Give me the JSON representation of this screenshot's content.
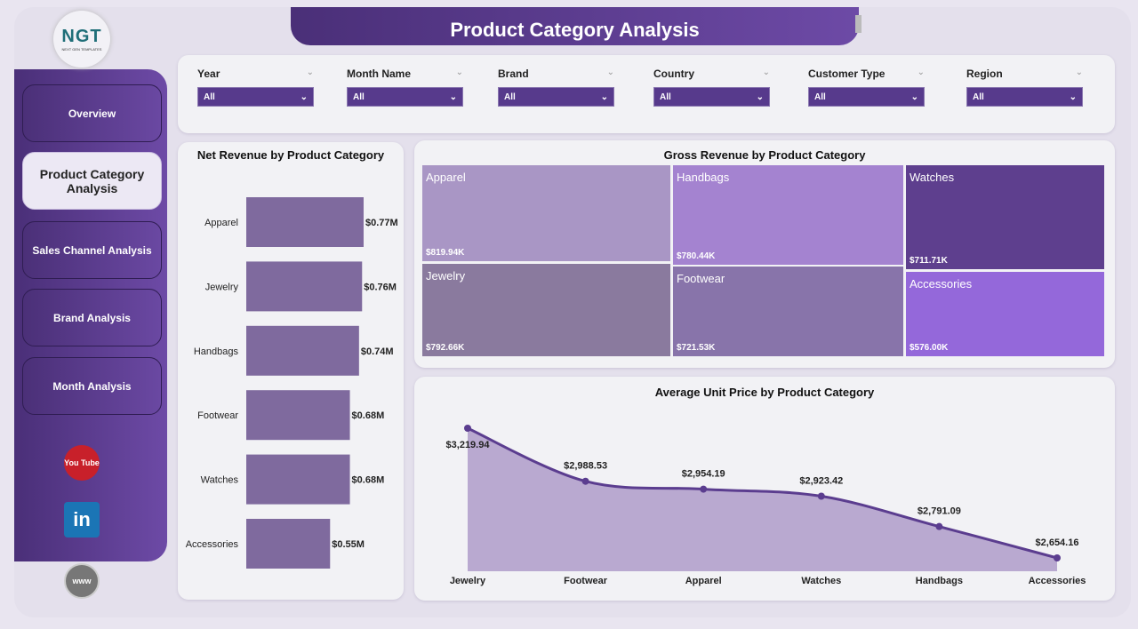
{
  "header": {
    "title": "Product Category Analysis",
    "logo_text": "NGT",
    "logo_sub": "NEXT GEN TEMPLATES"
  },
  "sidebar": {
    "items": [
      {
        "label": "Overview",
        "active": false
      },
      {
        "label": "Product Category Analysis",
        "active": true
      },
      {
        "label": "Sales Channel Analysis",
        "active": false
      },
      {
        "label": "Brand Analysis",
        "active": false
      },
      {
        "label": "Month Analysis",
        "active": false
      }
    ],
    "social": [
      {
        "icon": "youtube-icon",
        "label": "You Tube"
      },
      {
        "icon": "linkedin-icon",
        "label": "in"
      },
      {
        "icon": "globe-icon",
        "label": "www"
      }
    ]
  },
  "filters": [
    {
      "label": "Year",
      "value": "All"
    },
    {
      "label": "Month Name",
      "value": "All"
    },
    {
      "label": "Brand",
      "value": "All"
    },
    {
      "label": "Country",
      "value": "All"
    },
    {
      "label": "Customer Type",
      "value": "All"
    },
    {
      "label": "Region",
      "value": "All"
    }
  ],
  "colors": {
    "accent": "#573a8c",
    "bar": "#7f6a9e",
    "area": "#b9a9d0",
    "line": "#5b3d8f"
  },
  "chart_data": [
    {
      "type": "bar",
      "orientation": "horizontal",
      "title": "Net Revenue by Product Category",
      "categories": [
        "Apparel",
        "Jewelry",
        "Handbags",
        "Footwear",
        "Watches",
        "Accessories"
      ],
      "values": [
        0.77,
        0.76,
        0.74,
        0.68,
        0.68,
        0.55
      ],
      "labels": [
        "$0.77M",
        "$0.76M",
        "$0.74M",
        "$0.68M",
        "$0.68M",
        "$0.55M"
      ],
      "unit": "$M"
    },
    {
      "type": "treemap",
      "title": "Gross Revenue by Product Category",
      "categories": [
        "Apparel",
        "Jewelry",
        "Handbags",
        "Footwear",
        "Watches",
        "Accessories"
      ],
      "values": [
        819.94,
        792.66,
        780.44,
        721.53,
        711.71,
        576.0
      ],
      "labels": [
        "$819.94K",
        "$792.66K",
        "$780.44K",
        "$721.53K",
        "$711.71K",
        "$576.00K"
      ],
      "colors": [
        "#a996c5",
        "#8a7a9e",
        "#a483d0",
        "#8874aa",
        "#5e3f8e",
        "#9468da"
      ]
    },
    {
      "type": "area",
      "title": "Average Unit Price by Product Category",
      "categories": [
        "Jewelry",
        "Footwear",
        "Apparel",
        "Watches",
        "Handbags",
        "Accessories"
      ],
      "values": [
        3219.94,
        2988.53,
        2954.19,
        2923.42,
        2791.09,
        2654.16
      ],
      "labels": [
        "$3,219.94",
        "$2,988.53",
        "$2,954.19",
        "$2,923.42",
        "$2,791.09",
        "$2,654.16"
      ]
    }
  ]
}
